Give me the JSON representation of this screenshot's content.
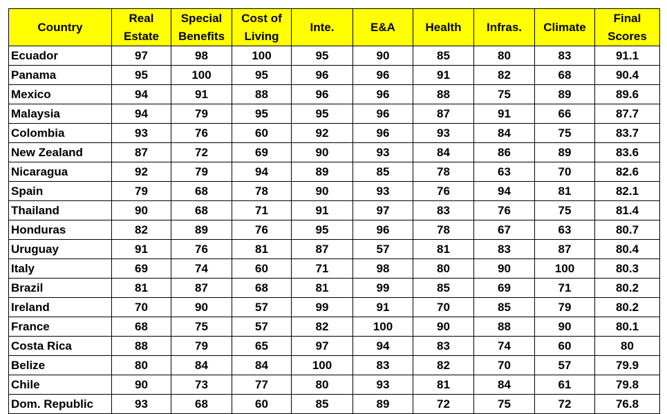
{
  "table": {
    "headers": [
      {
        "key": "country",
        "lines": [
          "Country"
        ]
      },
      {
        "key": "real_estate",
        "lines": [
          "Real",
          "Estate"
        ]
      },
      {
        "key": "special_benefits",
        "lines": [
          "Special",
          "Benefits"
        ]
      },
      {
        "key": "cost_of_living",
        "lines": [
          "Cost of",
          "Living"
        ]
      },
      {
        "key": "inte",
        "lines": [
          "Inte."
        ]
      },
      {
        "key": "ea",
        "lines": [
          "E&A"
        ]
      },
      {
        "key": "health",
        "lines": [
          "Health"
        ]
      },
      {
        "key": "infras",
        "lines": [
          "Infras."
        ]
      },
      {
        "key": "climate",
        "lines": [
          "Climate"
        ]
      },
      {
        "key": "final_scores",
        "lines": [
          "Final",
          "Scores"
        ]
      }
    ],
    "header_bg": "#ffff00",
    "rows": [
      [
        "Ecuador",
        "97",
        "98",
        "100",
        "95",
        "90",
        "85",
        "80",
        "83",
        "91.1"
      ],
      [
        "Panama",
        "95",
        "100",
        "95",
        "96",
        "96",
        "91",
        "82",
        "68",
        "90.4"
      ],
      [
        "Mexico",
        "94",
        "91",
        "88",
        "96",
        "96",
        "88",
        "75",
        "89",
        "89.6"
      ],
      [
        "Malaysia",
        "94",
        "79",
        "95",
        "95",
        "96",
        "87",
        "91",
        "66",
        "87.7"
      ],
      [
        "Colombia",
        "93",
        "76",
        "60",
        "92",
        "96",
        "93",
        "84",
        "75",
        "83.7"
      ],
      [
        "New Zealand",
        "87",
        "72",
        "69",
        "90",
        "93",
        "84",
        "86",
        "89",
        "83.6"
      ],
      [
        "Nicaragua",
        "92",
        "79",
        "94",
        "89",
        "85",
        "78",
        "63",
        "70",
        "82.6"
      ],
      [
        "Spain",
        "79",
        "68",
        "78",
        "90",
        "93",
        "76",
        "94",
        "81",
        "82.1"
      ],
      [
        "Thailand",
        "90",
        "68",
        "71",
        "91",
        "97",
        "83",
        "76",
        "75",
        "81.4"
      ],
      [
        "Honduras",
        "82",
        "89",
        "76",
        "95",
        "96",
        "78",
        "67",
        "63",
        "80.7"
      ],
      [
        "Uruguay",
        "91",
        "76",
        "81",
        "87",
        "57",
        "81",
        "83",
        "87",
        "80.4"
      ],
      [
        "Italy",
        "69",
        "74",
        "60",
        "71",
        "98",
        "80",
        "90",
        "100",
        "80.3"
      ],
      [
        "Brazil",
        "81",
        "87",
        "68",
        "81",
        "99",
        "85",
        "69",
        "71",
        "80.2"
      ],
      [
        "Ireland",
        "70",
        "90",
        "57",
        "99",
        "91",
        "70",
        "85",
        "79",
        "80.2"
      ],
      [
        "France",
        "68",
        "75",
        "57",
        "82",
        "100",
        "90",
        "88",
        "90",
        "80.1"
      ],
      [
        "Costa Rica",
        "88",
        "79",
        "65",
        "97",
        "94",
        "83",
        "74",
        "60",
        "80"
      ],
      [
        "Belize",
        "80",
        "84",
        "84",
        "100",
        "83",
        "82",
        "70",
        "57",
        "79.9"
      ],
      [
        "Chile",
        "90",
        "73",
        "77",
        "80",
        "93",
        "81",
        "84",
        "61",
        "79.8"
      ],
      [
        "Dom. Republic",
        "93",
        "68",
        "60",
        "85",
        "89",
        "72",
        "75",
        "72",
        "76.8"
      ]
    ]
  }
}
